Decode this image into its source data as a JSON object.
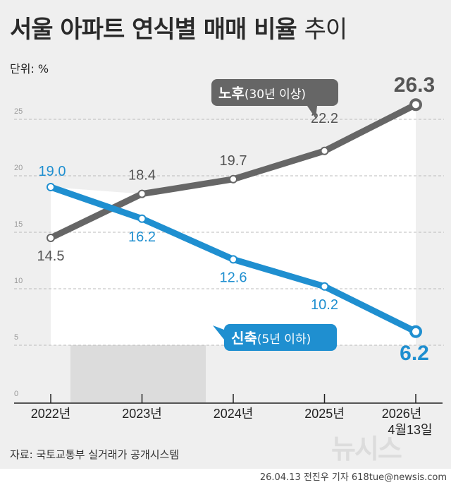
{
  "title_bold": "서울 아파트 연식별 매매 비율",
  "title_light": "추이",
  "unit": "단위: %",
  "source": "자료: 국토교통부 실거래가 공개시스템",
  "credit": "26.04.13 전진우 기자 618tue@newsis.com",
  "logo": "뉴시스",
  "chart_data": {
    "type": "line",
    "categories": [
      "2022년",
      "2023년",
      "2024년",
      "2025년",
      "2026년"
    ],
    "category_sublabels": [
      "",
      "",
      "",
      "",
      "4월13일"
    ],
    "ylim": [
      0,
      26.3
    ],
    "yticks": [
      0,
      5,
      10,
      15,
      20,
      25
    ],
    "grid": true,
    "series": [
      {
        "name": "노후",
        "name_sub": "(30년 이상)",
        "color": "#666666",
        "values": [
          14.5,
          18.4,
          19.7,
          22.2,
          26.3
        ]
      },
      {
        "name": "신축",
        "name_sub": "(5년 이하)",
        "color": "#1f8fd0",
        "values": [
          19.0,
          16.2,
          12.6,
          10.2,
          6.2
        ]
      }
    ]
  }
}
